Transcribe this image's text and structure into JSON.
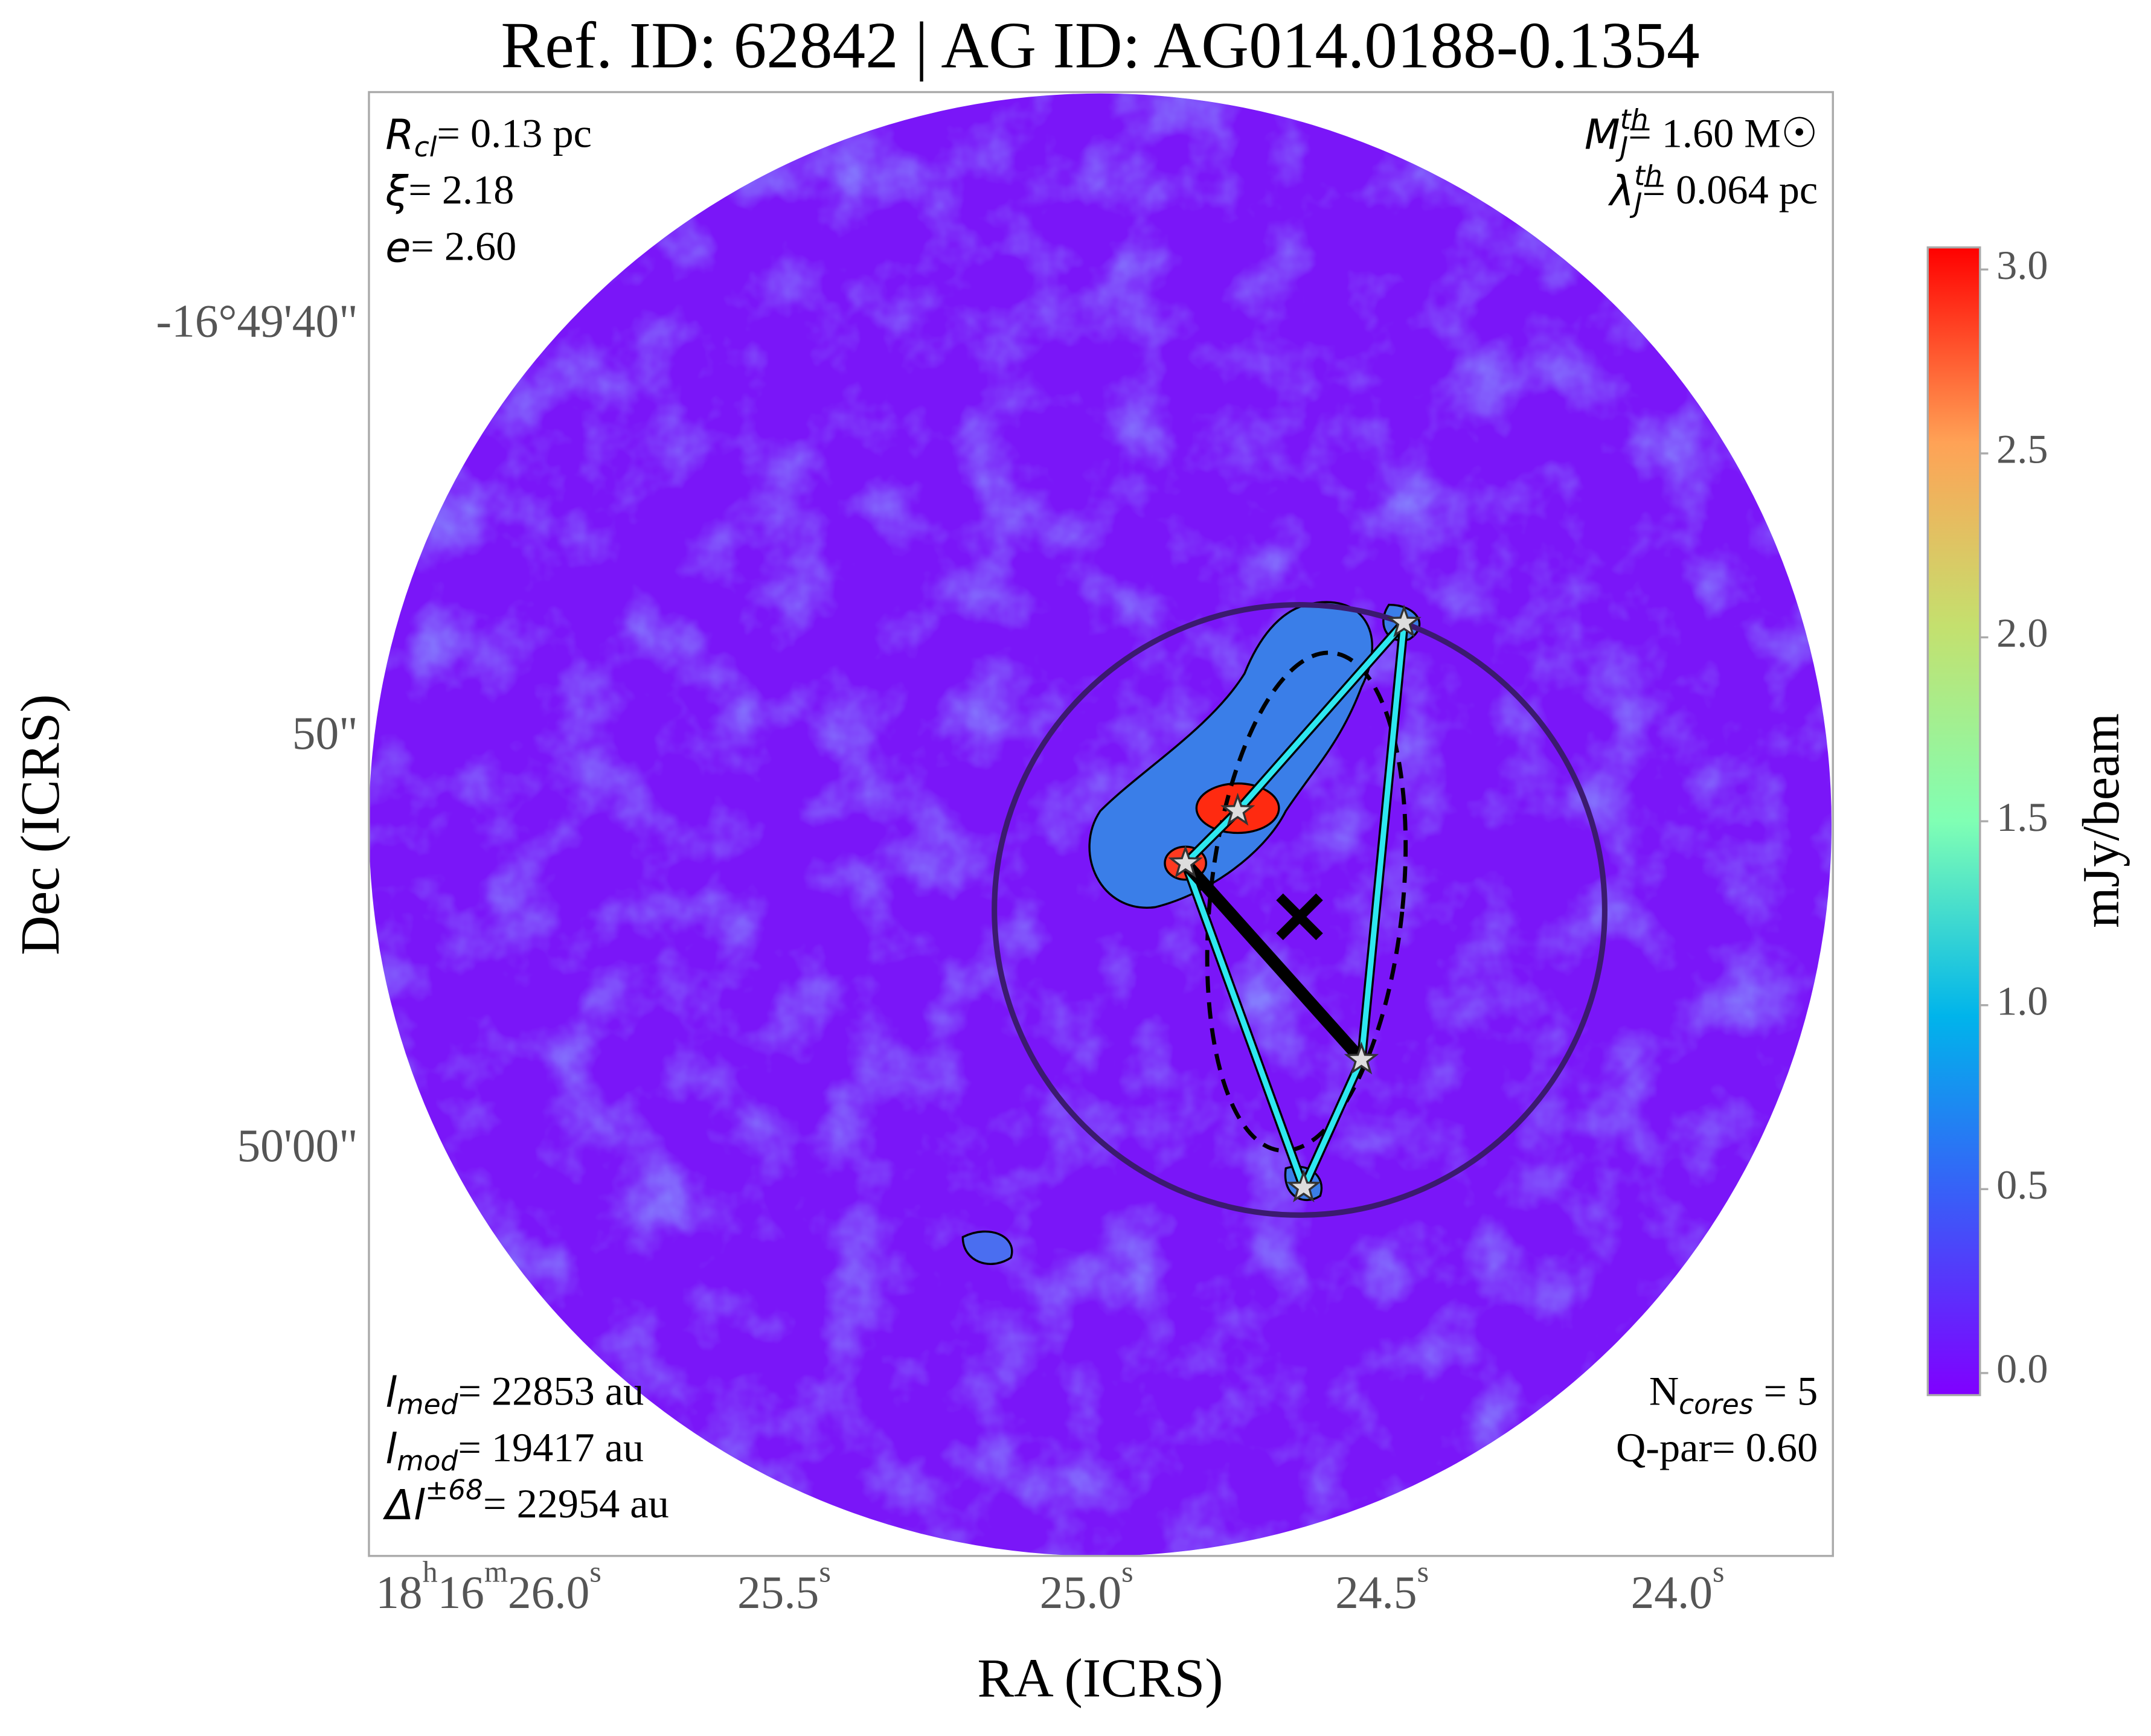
{
  "chart_data": {
    "type": "map",
    "title": "Ref. ID: 62842 | AG ID: AG014.0188-0.1354",
    "x_label": "RA (ICRS)",
    "y_label": "Dec (ICRS)",
    "x_tick_labels": [
      "18h16m26.0s",
      "25.5s",
      "25.0s",
      "24.5s",
      "24.0s"
    ],
    "y_tick_labels": [
      "-16°49'40\"",
      "50\"",
      "50'00\""
    ],
    "colorbar": {
      "label": "mJy/beam",
      "clim": [
        -0.06,
        3.06
      ],
      "ticks": [
        {
          "value": 0,
          "label": "0.0"
        },
        0.5,
        {
          "value": 1,
          "label": "1.0"
        },
        1.5,
        {
          "value": 2,
          "label": "2.0"
        },
        2.5,
        {
          "value": 3,
          "label": "3.0"
        }
      ]
    },
    "annotations": {
      "top_left": [
        {
          "sym": "R",
          "sub": "cl",
          "rest": "= 0.13 pc"
        },
        {
          "sym": "ξ",
          "rest": "= 2.18"
        },
        {
          "sym": "e",
          "rest": "= 2.60"
        }
      ],
      "top_right": [
        {
          "sym": "M",
          "sup": "th",
          "sub": "J",
          "rest": "= 1.60 M☉"
        },
        {
          "sym": "λ",
          "sup": "th",
          "sub": "J",
          "rest": "= 0.064 pc"
        }
      ],
      "bottom_left": [
        {
          "sym": "l",
          "sub": "med",
          "rest": "= 22853 au"
        },
        {
          "sym": "l",
          "sub": "mod",
          "rest": "= 19417 au"
        },
        {
          "sym": "Δl",
          "sup": "±68",
          "rest": "= 22954 au"
        }
      ],
      "bottom_right": [
        {
          "pre": "N",
          "sub": "cores",
          "rest": " = 5"
        },
        {
          "rest": "Q-par= 0.60"
        }
      ]
    }
  }
}
